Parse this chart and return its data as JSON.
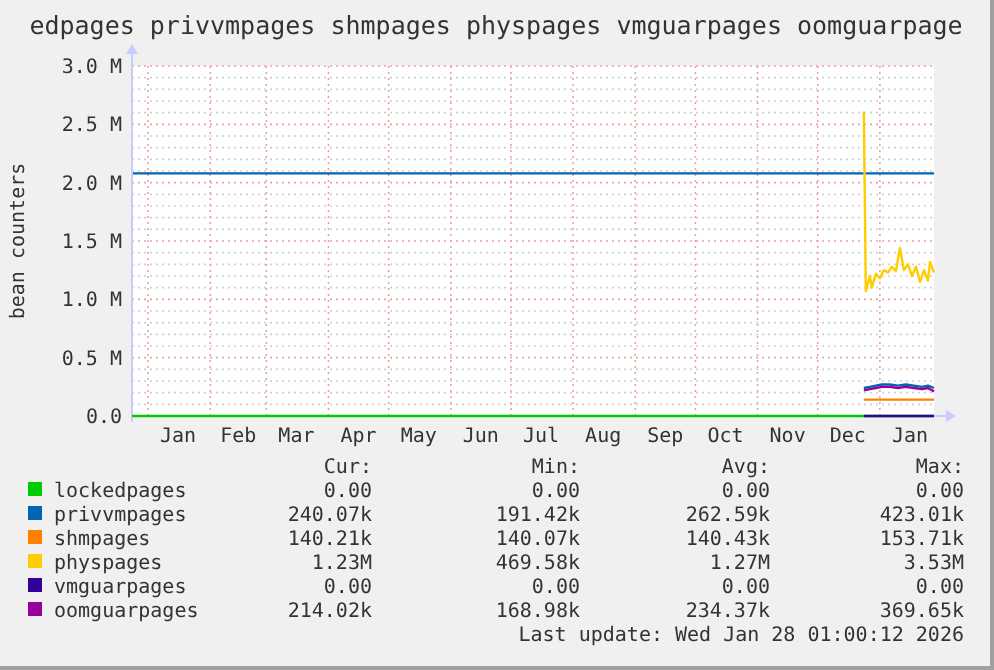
{
  "chart_data": {
    "type": "line",
    "title": "edpages privvmpages shmpages physpages vmguarpages oomguarpage",
    "ylabel": "bean counters",
    "xlim": [
      "2024-12-24",
      "2026-01-28"
    ],
    "xticks": [
      {
        "value": "2025-01-01",
        "label": null
      },
      {
        "value": "2025-02-01",
        "label": null
      },
      {
        "value": "2025-03-01",
        "label": null
      },
      {
        "value": "2025-04-01",
        "label": null
      },
      {
        "value": "2025-05-01",
        "label": null
      },
      {
        "value": "2025-06-01",
        "label": null
      },
      {
        "value": "2025-07-01",
        "label": null
      },
      {
        "value": "2025-08-01",
        "label": null
      },
      {
        "value": "2025-09-01",
        "label": null
      },
      {
        "value": "2025-10-01",
        "label": null
      },
      {
        "value": "2025-11-01",
        "label": null
      },
      {
        "value": "2025-12-01",
        "label": null
      },
      {
        "value": "2026-01-01",
        "label": null
      },
      {
        "value": "2025-01-16",
        "label": "Jan"
      },
      {
        "value": "2025-02-15",
        "label": "Feb"
      },
      {
        "value": "2025-03-16",
        "label": "Mar"
      },
      {
        "value": "2025-04-16",
        "label": "Apr"
      },
      {
        "value": "2025-05-16",
        "label": "May"
      },
      {
        "value": "2025-06-16",
        "label": "Jun"
      },
      {
        "value": "2025-07-16",
        "label": "Jul"
      },
      {
        "value": "2025-08-16",
        "label": "Aug"
      },
      {
        "value": "2025-09-16",
        "label": "Sep"
      },
      {
        "value": "2025-10-16",
        "label": "Oct"
      },
      {
        "value": "2025-11-16",
        "label": "Nov"
      },
      {
        "value": "2025-12-16",
        "label": "Dec"
      },
      {
        "value": "2026-01-16",
        "label": "Jan"
      }
    ],
    "ylim": [
      0,
      3000000
    ],
    "yticks": [
      {
        "value": 0,
        "label": "0.0"
      },
      {
        "value": 100000,
        "label": null
      },
      {
        "value": 200000,
        "label": null
      },
      {
        "value": 300000,
        "label": null
      },
      {
        "value": 400000,
        "label": null
      },
      {
        "value": 500000,
        "label": "0.5 M"
      },
      {
        "value": 600000,
        "label": null
      },
      {
        "value": 700000,
        "label": null
      },
      {
        "value": 800000,
        "label": null
      },
      {
        "value": 900000,
        "label": null
      },
      {
        "value": 1000000,
        "label": "1.0 M"
      },
      {
        "value": 1100000,
        "label": null
      },
      {
        "value": 1200000,
        "label": null
      },
      {
        "value": 1300000,
        "label": null
      },
      {
        "value": 1400000,
        "label": null
      },
      {
        "value": 1500000,
        "label": "1.5 M"
      },
      {
        "value": 1600000,
        "label": null
      },
      {
        "value": 1700000,
        "label": null
      },
      {
        "value": 1800000,
        "label": null
      },
      {
        "value": 1900000,
        "label": null
      },
      {
        "value": 2000000,
        "label": "2.0 M"
      },
      {
        "value": 2100000,
        "label": null
      },
      {
        "value": 2200000,
        "label": null
      },
      {
        "value": 2300000,
        "label": null
      },
      {
        "value": 2400000,
        "label": null
      },
      {
        "value": 2500000,
        "label": "2.5 M"
      },
      {
        "value": 2600000,
        "label": null
      },
      {
        "value": 2700000,
        "label": null
      },
      {
        "value": 2800000,
        "label": null
      },
      {
        "value": 2900000,
        "label": null
      },
      {
        "value": 3000000,
        "label": "3.0 M"
      }
    ],
    "grid": true,
    "legend": "bottom",
    "ref_lines": [
      {
        "axis": "y",
        "value": 2080000,
        "color": "#0066b3"
      }
    ],
    "series": [
      {
        "name": "lockedpages",
        "color": "#00cc00",
        "x": [
          "2024-12-24",
          "2026-01-28"
        ],
        "values": [
          0,
          0
        ]
      },
      {
        "name": "privvmpages",
        "color": "#0066b3",
        "x": [
          "2025-12-24",
          "2025-12-27",
          "2025-12-30",
          "2026-01-02",
          "2026-01-06",
          "2026-01-10",
          "2026-01-14",
          "2026-01-18",
          "2026-01-22",
          "2026-01-25",
          "2026-01-28"
        ],
        "values": [
          240000,
          250000,
          260000,
          270000,
          270000,
          260000,
          270000,
          260000,
          250000,
          260000,
          240000
        ]
      },
      {
        "name": "shmpages",
        "color": "#ff8000",
        "x": [
          "2025-12-24",
          "2026-01-28"
        ],
        "values": [
          140000,
          140000
        ]
      },
      {
        "name": "physpages",
        "color": "#ffcc00",
        "x": [
          "2025-12-24",
          "2025-12-25",
          "2025-12-27",
          "2025-12-28",
          "2025-12-30",
          "2026-01-01",
          "2026-01-03",
          "2026-01-05",
          "2026-01-07",
          "2026-01-09",
          "2026-01-11",
          "2026-01-13",
          "2026-01-15",
          "2026-01-17",
          "2026-01-19",
          "2026-01-21",
          "2026-01-23",
          "2026-01-25",
          "2026-01-26",
          "2026-01-28"
        ],
        "values": [
          2610000,
          1070000,
          1200000,
          1100000,
          1220000,
          1180000,
          1250000,
          1230000,
          1280000,
          1240000,
          1440000,
          1250000,
          1300000,
          1200000,
          1280000,
          1150000,
          1250000,
          1160000,
          1320000,
          1230000
        ]
      },
      {
        "name": "vmguarpages",
        "color": "#330099",
        "x": [
          "2025-12-24",
          "2026-01-28"
        ],
        "values": [
          0,
          0
        ]
      },
      {
        "name": "oomguarpages",
        "color": "#990099",
        "x": [
          "2025-12-24",
          "2025-12-27",
          "2025-12-30",
          "2026-01-02",
          "2026-01-06",
          "2026-01-10",
          "2026-01-14",
          "2026-01-18",
          "2026-01-22",
          "2026-01-25",
          "2026-01-28"
        ],
        "values": [
          220000,
          230000,
          240000,
          250000,
          250000,
          240000,
          250000,
          240000,
          230000,
          240000,
          210000
        ]
      }
    ],
    "annotations": [
      "Cur:",
      "Min:",
      "Avg:",
      "Max:",
      "0.00",
      "0.00",
      "0.00",
      "0.00",
      "240.07k",
      "191.42k",
      "262.59k",
      "423.01k",
      "140.21k",
      "140.07k",
      "140.43k",
      "153.71k",
      "1.23M",
      "469.58k",
      "1.27M",
      "3.53M",
      "0.00",
      "0.00",
      "0.00",
      "0.00",
      "214.02k",
      "168.98k",
      "234.37k",
      "369.65k",
      "Last update: Wed Jan 28 01:00:12 2026"
    ]
  }
}
